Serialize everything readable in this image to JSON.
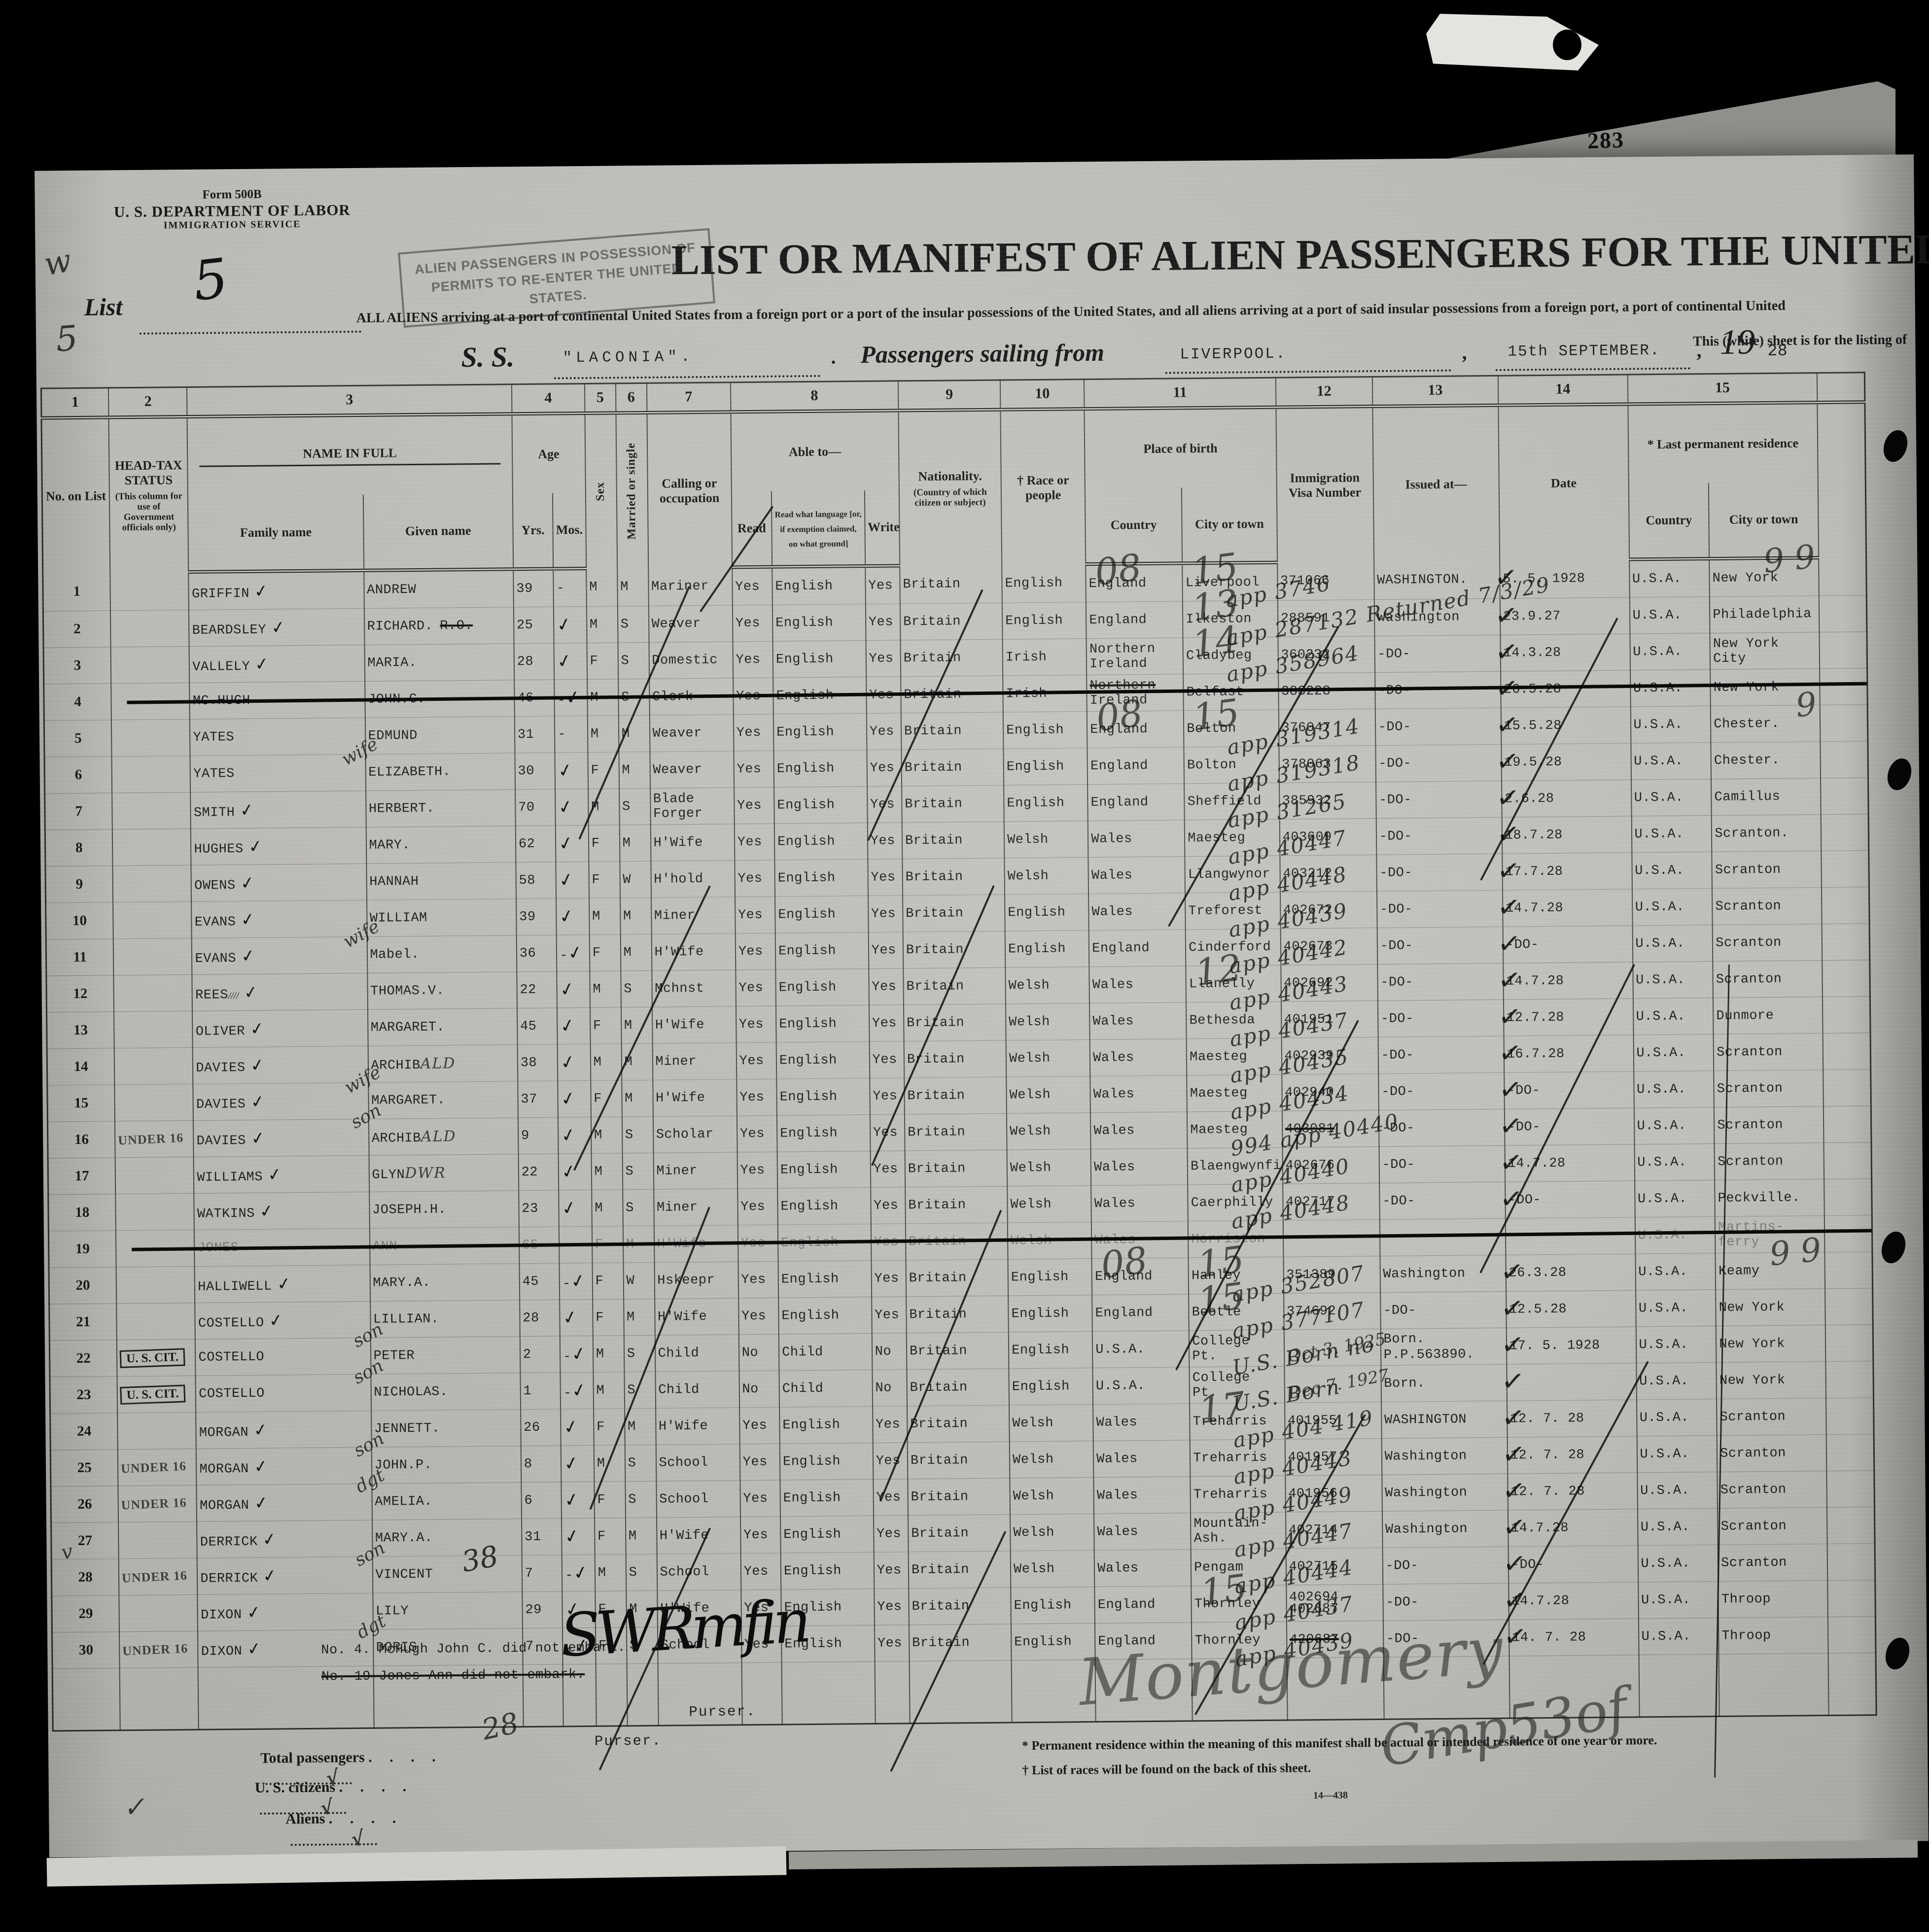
{
  "page": {
    "number_on_underlying_sheet": "283"
  },
  "form_header": {
    "form_no": "Form 500B",
    "dept": "U. S. DEPARTMENT OF LABOR",
    "service": "IMMIGRATION SERVICE",
    "list_label": "List",
    "list_number": "5",
    "stamp": "ALIEN PASSENGERS IN POSSESSION OF PERMITS TO RE-ENTER THE UNITED STATES.",
    "title": "LIST OR MANIFEST OF ALIEN PASSENGERS FOR THE UNITED",
    "subtitle": "ALL ALIENS arriving at a port of continental United States from a foreign port or a port of the insular possessions of the United States, and all aliens arriving at a port of said insular possessions from a foreign port, a port of continental United",
    "subtitle2": "This (white) sheet is for the listing of",
    "ss_label": "S. S.",
    "ship_name": "\"LACONIA\".",
    "ss_dot": ".",
    "sailing_label": "Passengers sailing from",
    "port": "LIVERPOOL.",
    "comma": ",",
    "sailing_date": "15th SEPTEMBER.",
    "year_printed": "19",
    "year_typed": "28"
  },
  "columns": {
    "numbers": [
      "1",
      "2",
      "3",
      "4",
      "5",
      "6",
      "7",
      "8",
      "9",
      "10",
      "11",
      "12",
      "13",
      "14",
      "15",
      ""
    ],
    "no": "No. on List",
    "headtax": "HEAD-TAX STATUS",
    "headtax_note": "(This column for use of Government officials only)",
    "name": "NAME IN FULL",
    "family": "Family name",
    "given": "Given name",
    "age": "Age",
    "yrs": "Yrs.",
    "mos": "Mos.",
    "sex": "Sex",
    "married": "Married or single",
    "calling": "Calling or occupation",
    "able": "Able to—",
    "read": "Read",
    "read_lang": "Read what language [or, if exemption claimed, on what ground]",
    "write": "Write",
    "nationality": "Nationality.",
    "nationality_note": "(Country of which citizen or subject)",
    "race": "† Race or people",
    "birth": "Place of birth",
    "country": "Country",
    "city": "City or town",
    "visa": "Immigration Visa Number",
    "issued": "Issued at—",
    "date": "Date",
    "residence": "* Last permanent residence"
  },
  "rows": [
    {
      "n": "1",
      "fam": "GRIFFIN",
      "famchk": true,
      "giv": "ANDREW",
      "yrs": "39",
      "mos": "-",
      "sex": "M",
      "ms": "M",
      "call": "Mariner",
      "read": "Yes",
      "lang": "English",
      "wr": "Yes",
      "nat": "Britain",
      "race": "English",
      "bc": "England",
      "bcity": "Liverpool",
      "visa": "371066",
      "iss": "WASHINGTON.",
      "date": "5. 5. 1928",
      "rc": "U.S.A.",
      "rcity": "New York",
      "hw": "app 3746",
      "d1": "08",
      "d2": "15",
      "n99": "9 9"
    },
    {
      "n": "2",
      "fam": "BEARDSLEY",
      "famchk": true,
      "giv": "RICHARD.",
      "givx": "R.O.",
      "yrs": "25",
      "chk": true,
      "sex": "M",
      "ms": "S",
      "call": "Weaver",
      "read": "Yes",
      "lang": "English",
      "wr": "Yes",
      "nat": "Britain",
      "race": "English",
      "bc": "England",
      "bcity": "Ilkeston",
      "visa": "288591",
      "iss": "Washington",
      "date": "23.9.27",
      "rc": "U.S.A.",
      "rcity": "Philadelphia",
      "hw": "app 287132  Returned 7/3/29",
      "d2": "13"
    },
    {
      "n": "3",
      "fam": "VALLELY",
      "famchk": true,
      "giv": "MARIA.",
      "yrs": "28",
      "chk": true,
      "sex": "F",
      "ms": "S",
      "call": "Domestic",
      "read": "Yes",
      "lang": "English",
      "wr": "Yes",
      "nat": "Britain",
      "race": "Irish",
      "bc": "Northern\nIreland",
      "bcity": "Cladybeg",
      "visa": "360232",
      "iss": "-DO-",
      "date": "14.3.28",
      "rc": "U.S.A.",
      "rcity": "New York City",
      "hw": "app 358964",
      "d2": "14"
    },
    {
      "n": "4",
      "fam": "MC.HUGH",
      "giv": "JOHN.C.",
      "yrs": "46",
      "mos": "-",
      "chk": true,
      "sex": "M",
      "ms": "S",
      "call": "Clerk",
      "read": "Yes",
      "lang": "English",
      "wr": "Yes",
      "nat": "Britain",
      "race": "Irish",
      "bc": "Northern\nIreland",
      "bcstrike": true,
      "bcity": "Belfast",
      "visa": "383228",
      "iss": "-DO-",
      "date": "26.5.28",
      "rc": "U.S.A.",
      "rcity": "New York",
      "struck": true
    },
    {
      "n": "5",
      "fam": "YATES",
      "giv": "EDMUND",
      "yrs": "31",
      "mos": "-",
      "sex": "M",
      "ms": "M",
      "call": "Weaver",
      "read": "Yes",
      "lang": "English",
      "wr": "Yes",
      "nat": "Britain",
      "race": "English",
      "bc": "England",
      "bcity": "Bolton",
      "visa": "376047",
      "iss": "-DO-",
      "date": "15.5.28",
      "rc": "U.S.A.",
      "rcity": "Chester.",
      "hw": "app 319314",
      "d1": "08",
      "d2": "15",
      "n99": "9"
    },
    {
      "n": "6",
      "fam": "YATES",
      "rel": "wife",
      "giv": "ELIZABETH.",
      "yrs": "30",
      "chk": true,
      "sex": "F",
      "ms": "M",
      "call": "Weaver",
      "read": "Yes",
      "lang": "English",
      "wr": "Yes",
      "nat": "Britain",
      "race": "English",
      "bc": "England",
      "bcity": "Bolton",
      "visa": "378063",
      "iss": "-DO-",
      "date": "19.5.28",
      "rc": "U.S.A.",
      "rcity": "Chester.",
      "hw": "app 319318"
    },
    {
      "n": "7",
      "fam": "SMITH",
      "famchk": true,
      "giv": "HERBERT.",
      "yrs": "70",
      "chk": true,
      "sex": "M",
      "ms": "S",
      "call": "Blade\nForger",
      "read": "Yes",
      "lang": "English",
      "wr": "Yes",
      "nat": "Britain",
      "race": "English",
      "bc": "England",
      "bcity": "Sheffield",
      "visa": "385932",
      "iss": "-DO-",
      "date": "2.6.28",
      "rc": "U.S.A.",
      "rcity": "Camillus",
      "hw": "app 31265"
    },
    {
      "n": "8",
      "fam": "HUGHES",
      "famchk": true,
      "giv": "MARY.",
      "yrs": "62",
      "chk": true,
      "sex": "F",
      "ms": "M",
      "call": "H'Wife",
      "read": "Yes",
      "lang": "English",
      "wr": "Yes",
      "nat": "Britain",
      "race": "Welsh",
      "bc": "Wales",
      "bcity": "Maesteg",
      "visa": "403609",
      "iss": "-DO-",
      "date": "18.7.28",
      "rc": "U.S.A.",
      "rcity": "Scranton.",
      "hw": "app 40447"
    },
    {
      "n": "9",
      "fam": "OWENS",
      "famchk": true,
      "giv": "HANNAH",
      "yrs": "58",
      "chk": true,
      "sex": "F",
      "ms": "W",
      "call": "H'hold",
      "read": "Yes",
      "lang": "English",
      "wr": "Yes",
      "nat": "Britain",
      "race": "Welsh",
      "bc": "Wales",
      "bcity": "Llangwynor",
      "visa": "403212",
      "iss": "-DO-",
      "date": "17.7.28",
      "rc": "U.S.A.",
      "rcity": "Scranton",
      "hw": "app 40448"
    },
    {
      "n": "10",
      "fam": "EVANS",
      "famchk": true,
      "giv": "WILLIAM",
      "yrs": "39",
      "chk": true,
      "sex": "M",
      "ms": "M",
      "call": "Miner",
      "read": "Yes",
      "lang": "English",
      "wr": "Yes",
      "nat": "Britain",
      "race": "English",
      "bc": "Wales",
      "bcity": "Treforest",
      "visa": "402672",
      "iss": "-DO-",
      "date": "14.7.28",
      "rc": "U.S.A.",
      "rcity": "Scranton",
      "hw": "app 40439"
    },
    {
      "n": "11",
      "fam": "EVANS",
      "famchk": true,
      "rel": "wife",
      "giv": "Mabel.",
      "yrs": "36",
      "mos": "-",
      "chk": true,
      "sex": "F",
      "ms": "M",
      "call": "H'Wife",
      "read": "Yes",
      "lang": "English",
      "wr": "Yes",
      "nat": "Britain",
      "race": "English",
      "bc": "England",
      "bcity": "Cinderford",
      "visa": "402673",
      "iss": "-DO-",
      "date": "-DO-",
      "rc": "U.S.A.",
      "rcity": "Scranton",
      "hw": "app 40442"
    },
    {
      "n": "12",
      "fam": "REES",
      "famx": "∕∕∕∕",
      "famchk": true,
      "giv": "THOMAS.V.",
      "yrs": "22",
      "chk": true,
      "sex": "M",
      "ms": "S",
      "call": "Mchnst",
      "read": "Yes",
      "lang": "English",
      "wr": "Yes",
      "nat": "Britain",
      "race": "Welsh",
      "bc": "Wales",
      "bcity": "Llanelly",
      "visa": "402692",
      "iss": "-DO-",
      "date": "14.7.28",
      "rc": "U.S.A.",
      "rcity": "Scranton",
      "hw": "app 40443",
      "d2": "12"
    },
    {
      "n": "13",
      "fam": "OLIVER",
      "famchk": true,
      "giv": "MARGARET.",
      "yrs": "45",
      "chk": true,
      "sex": "F",
      "ms": "M",
      "call": "H'Wife",
      "read": "Yes",
      "lang": "English",
      "wr": "Yes",
      "nat": "Britain",
      "race": "Welsh",
      "bc": "Wales",
      "bcity": "Bethesda",
      "visa": "401951",
      "iss": "-DO-",
      "date": "12.7.28",
      "rc": "U.S.A.",
      "rcity": "Dunmore",
      "hw": "app 40437"
    },
    {
      "n": "14",
      "fam": "DAVIES",
      "famchk": true,
      "giv": "ARCHIB",
      "givhw": "ALD",
      "yrs": "38",
      "chk": true,
      "sex": "M",
      "ms": "M",
      "call": "Miner",
      "read": "Yes",
      "lang": "English",
      "wr": "Yes",
      "nat": "Britain",
      "race": "Welsh",
      "bc": "Wales",
      "bcity": "Maesteg",
      "visa": "402939",
      "iss": "-DO-",
      "date": "16.7.28",
      "rc": "U.S.A.",
      "rcity": "Scranton",
      "hw": "app 40435"
    },
    {
      "n": "15",
      "fam": "DAVIES",
      "famchk": true,
      "rel": "wife",
      "giv": "MARGARET.",
      "yrs": "37",
      "chk": true,
      "sex": "F",
      "ms": "M",
      "call": "H'Wife",
      "read": "Yes",
      "lang": "English",
      "wr": "Yes",
      "nat": "Britain",
      "race": "Welsh",
      "bc": "Wales",
      "bcity": "Maesteg",
      "visa": "402940.",
      "iss": "-DO-",
      "date": "-DO-",
      "rc": "U.S.A.",
      "rcity": "Scranton",
      "hw": "app 40434"
    },
    {
      "n": "16",
      "ht": "UNDER 16",
      "fam": "DAVIES",
      "famchk": true,
      "rel": "son",
      "giv": "ARCHIB",
      "givhw": "ALD",
      "yrs": "9",
      "chk": true,
      "sex": "M",
      "ms": "S",
      "call": "Scholar",
      "read": "Yes",
      "lang": "English",
      "wr": "Yes",
      "nat": "Britain",
      "race": "Welsh",
      "bc": "Wales",
      "bcity": "Maesteg",
      "visa": "403081",
      "vstruck": true,
      "iss": "-DO-",
      "date": "-DO-",
      "rc": "U.S.A.",
      "rcity": "Scranton",
      "hw": "994 app 40440"
    },
    {
      "n": "17",
      "fam": "WILLIAMS",
      "famchk": true,
      "giv": "GLYN",
      "givhw": "DWR",
      "yrs": "22",
      "chk": true,
      "sex": "M",
      "ms": "S",
      "call": "Miner",
      "read": "Yes",
      "lang": "English",
      "wr": "Yes",
      "nat": "Britain",
      "race": "Welsh",
      "bc": "Wales",
      "bcity": "Blaengwynfi",
      "visa": "402676",
      "iss": "-DO-",
      "date": "14.7.28",
      "rc": "U.S.A.",
      "rcity": "Scranton",
      "hw": "app 40440"
    },
    {
      "n": "18",
      "fam": "WATKINS",
      "famchk": true,
      "giv": "JOSEPH.H.",
      "yrs": "23",
      "chk": true,
      "sex": "M",
      "ms": "S",
      "call": "Miner",
      "read": "Yes",
      "lang": "English",
      "wr": "Yes",
      "nat": "Britain",
      "race": "Welsh",
      "bc": "Wales",
      "bcity": "Caerphilly",
      "visa": "402717",
      "iss": "-DO-",
      "date": "-DO-",
      "rc": "U.S.A.",
      "rcity": "Peckville.",
      "hw": "app 40448"
    },
    {
      "n": "19",
      "fam": "JONES",
      "giv": "ANN",
      "yrs": "65",
      "sex": "F",
      "ms": "M",
      "call": "H'Wife",
      "read": "Yes",
      "lang": "English",
      "wr": "Yes",
      "nat": "Britain",
      "race": "Welsh",
      "bc": "Wales",
      "bcity": "Morriston",
      "visa": "",
      "iss": "",
      "date": "",
      "rc": "U.S.A.",
      "rcity": "Martins-\nferry",
      "struck": true,
      "faint": true
    },
    {
      "n": "20",
      "fam": "HALLIWELL",
      "famchk": true,
      "giv": "MARY.A.",
      "yrs": "45",
      "mos": "-",
      "chk": true,
      "sex": "F",
      "ms": "W",
      "call": "Hskeepr",
      "read": "Yes",
      "lang": "English",
      "wr": "Yes",
      "nat": "Britain",
      "race": "English",
      "bc": "England",
      "bcity": "Hanley",
      "visa": "351389",
      "iss": "Washington",
      "date": "26.3.28",
      "rc": "U.S.A.",
      "rcity": "Keamy",
      "hw": "app 352807",
      "d1": "08",
      "d2": "15",
      "n99": "9 9"
    },
    {
      "n": "21",
      "fam": "COSTELLO",
      "famchk": true,
      "giv": "LILLIAN.",
      "yrs": "28",
      "chk": true,
      "sex": "F",
      "ms": "M",
      "call": "H'Wife",
      "read": "Yes",
      "lang": "English",
      "wr": "Yes",
      "nat": "Britain",
      "race": "English",
      "bc": "England",
      "bcity": "Bootle",
      "visa": "374692",
      "iss": "-DO-",
      "date": "12.5.28",
      "rc": "U.S.A.",
      "rcity": "New York",
      "hw": "app 377107",
      "d2": "15"
    },
    {
      "n": "22",
      "ht": "U. S. CIT.",
      "htbox": true,
      "fam": "COSTELLO",
      "rel": "son",
      "giv": "PETER",
      "yrs": "2",
      "mos": "-",
      "chk": true,
      "sex": "M",
      "ms": "S",
      "call": "Child",
      "read": "No",
      "lang": "Child",
      "wr": "No",
      "nat": "Britain",
      "race": "English",
      "bc": "U.S.A.",
      "bcity": "College\nPt.",
      "visahw": "Oct 3. 1925",
      "iss": "Born.",
      "iss2": "P.P.563890.",
      "date": "17. 5. 1928",
      "rc": "U.S.A.",
      "rcity": "New York",
      "hw": "U.S. Born   no"
    },
    {
      "n": "23",
      "ht": "U. S. CIT.",
      "htbox": true,
      "fam": "COSTELLO",
      "rel": "son",
      "giv": "NICHOLAS.",
      "yrs": "1",
      "mos": "-",
      "chk": true,
      "sex": "M",
      "ms": "S",
      "call": "Child",
      "read": "No",
      "lang": "Child",
      "wr": "No",
      "nat": "Britain",
      "race": "English",
      "bc": "U.S.A.",
      "bcity": "College\nPt.",
      "visahw": "Dec 7. 1927",
      "iss": "Born.",
      "date": "",
      "rc": "U.S.A.",
      "rcity": "New York",
      "hw": "U.S. Born"
    },
    {
      "n": "24",
      "fam": "MORGAN",
      "famchk": true,
      "giv": "JENNETT.",
      "yrs": "26",
      "chk": true,
      "sex": "F",
      "ms": "M",
      "call": "H'Wife",
      "read": "Yes",
      "lang": "English",
      "wr": "Yes",
      "nat": "Britain",
      "race": "Welsh",
      "bc": "Wales",
      "bcity": "Treharris",
      "visa": "401955",
      "iss": "WASHINGTON",
      "date": "12. 7. 28",
      "rc": "U.S.A.",
      "rcity": "Scranton",
      "hw": "app 404 419",
      "d2": "17"
    },
    {
      "n": "25",
      "ht": "UNDER 16",
      "fam": "MORGAN",
      "famchk": true,
      "rel": "son",
      "giv": "JOHN.P.",
      "yrs": "8",
      "chk": true,
      "sex": "M",
      "ms": "S",
      "call": "School",
      "read": "Yes",
      "lang": "English",
      "wr": "Yes",
      "nat": "Britain",
      "race": "Welsh",
      "bc": "Wales",
      "bcity": "Treharris",
      "visa": "401957",
      "iss": "Washington",
      "date": "12. 7. 28",
      "rc": "U.S.A.",
      "rcity": "Scranton",
      "hw": "app 40443"
    },
    {
      "n": "26",
      "ht": "UNDER 16",
      "fam": "MORGAN",
      "famchk": true,
      "rel": "dgt",
      "giv": "AMELIA.",
      "yrs": "6",
      "chk": true,
      "sex": "F",
      "ms": "S",
      "call": "School",
      "read": "Yes",
      "lang": "English",
      "wr": "Yes",
      "nat": "Britain",
      "race": "Welsh",
      "bc": "Wales",
      "bcity": "Treharris",
      "visa": "401956",
      "iss": "Washington",
      "date": "12. 7. 28",
      "rc": "U.S.A.",
      "rcity": "Scranton",
      "hw": "app 40449"
    },
    {
      "n": "27",
      "fam": "DERRICK",
      "famchk": true,
      "giv": "MARY.A.",
      "yrs": "31",
      "chk": true,
      "sex": "F",
      "ms": "M",
      "call": "H'Wife",
      "read": "Yes",
      "lang": "English",
      "wr": "Yes",
      "nat": "Britain",
      "race": "Welsh",
      "bc": "Wales",
      "bcity": "Mountain-\nAsh.",
      "visa": "402714",
      "iss": "Washington",
      "date": "14.7.28",
      "rc": "U.S.A.",
      "rcity": "Scranton",
      "hw": "app 40447"
    },
    {
      "n": "28",
      "ht": "UNDER 16",
      "fam": "DERRICK",
      "famchk": true,
      "rel": "son",
      "giv": "VINCENT",
      "giv38": "38",
      "yrs": "7",
      "mos": "-",
      "chk": true,
      "sex": "M",
      "ms": "S",
      "call": "School",
      "read": "Yes",
      "lang": "English",
      "wr": "Yes",
      "nat": "Britain",
      "race": "Welsh",
      "bc": "Wales",
      "bcity": "Pengam",
      "visa": "402715",
      "iss": "-DO-",
      "date": "-DO-",
      "rc": "U.S.A.",
      "rcity": "Scranton",
      "hw": "app 40444"
    },
    {
      "n": "29",
      "fam": "DIXON",
      "famchk": true,
      "giv": "LILY",
      "yrs": "29",
      "chk": true,
      "sex": "F",
      "ms": "M",
      "call": "H'Wife",
      "read": "Yes",
      "lang": "English",
      "wr": "Yes",
      "nat": "Britain",
      "race": "English",
      "bc": "England",
      "bcity": "Thornley",
      "visa": "402694",
      "visa2": "402687",
      "iss": "-DO-",
      "date": "14.7.28",
      "rc": "U.S.A.",
      "rcity": "Throop",
      "hw": "app 40437",
      "d2": "15"
    },
    {
      "n": "30",
      "ht": "UNDER 16",
      "fam": "DIXON",
      "famchk": true,
      "rel": "dgt",
      "giv": "DORIS",
      "yrs": "7",
      "mos": "-",
      "chk": true,
      "sex": "F",
      "ms": "S",
      "call": "School",
      "read": "Yes",
      "lang": "English",
      "wr": "Yes",
      "nat": "Britain",
      "race": "English",
      "bc": "England",
      "bcity": "Thornley",
      "visa": "420687",
      "vstruck": true,
      "iss": "-DO-",
      "date": "14. 7. 28",
      "rc": "U.S.A.",
      "rcity": "Throop",
      "hw": "app 40439"
    }
  ],
  "notes": {
    "line1": "No. 4. McHugh John C.  did not embark.",
    "line2": "No. 19 Jones Ann did not embark.",
    "purser1": "Purser.",
    "purser2": "Purser.",
    "hw_28": "28",
    "purser_signature_scrawl": "SWRmfin",
    "montgomery_signature": "Montgomery",
    "bottom_right_scrawl": "Cmp53of"
  },
  "totals": {
    "total_label": "Total passengers",
    "us_label": "U. S. citizens",
    "aliens_label": "Aliens",
    "leader": ". . . .",
    "check1": "√",
    "check2": "√",
    "check3": "√"
  },
  "footnotes": {
    "f1": "* Permanent residence within the meaning of this manifest shall be actual or intended residence of one year or more.",
    "f2": "† List of races will be found on the back of this sheet.",
    "code": "14—438"
  },
  "margin_marks": {
    "m1": "w",
    "m2": "5",
    "m3": "✓",
    "m4": "v"
  }
}
